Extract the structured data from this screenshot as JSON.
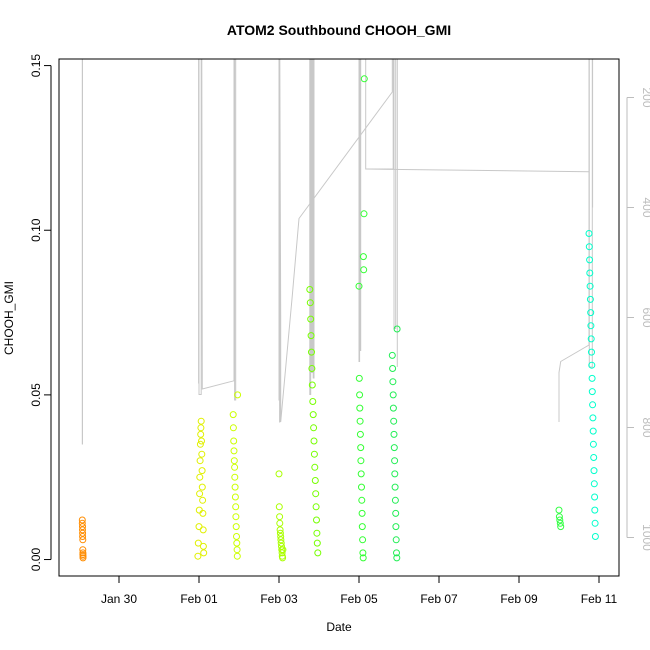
{
  "chart_data": {
    "type": "scatter",
    "title": "ATOM2 Southbound CHOOH_GMI",
    "xlabel": "Date",
    "ylabel": "CHOOH_GMI",
    "x_tick_labels": [
      "Jan 30",
      "Feb 01",
      "Feb 03",
      "Feb 05",
      "Feb 07",
      "Feb 09",
      "Feb 11"
    ],
    "x_ticks": [
      "2017-01-30",
      "2017-02-01",
      "2017-02-03",
      "2017-02-05",
      "2017-02-07",
      "2017-02-09",
      "2017-02-11"
    ],
    "xlim": [
      "2017-01-28T12:00",
      "2017-02-11T12:00"
    ],
    "y_tick_labels": [
      "0.00",
      "0.05",
      "0.10",
      "0.15"
    ],
    "ylim": [
      -0.005,
      0.152
    ],
    "right_axis": {
      "label": "",
      "reversed": true,
      "tick_labels": [
        "200",
        "400",
        "600",
        "800",
        "1000"
      ],
      "ylim": [
        1070,
        130
      ],
      "color": "#bdbdbd"
    },
    "grid": false,
    "legend": "none",
    "series": [
      {
        "x": [
          "2017-01-29T02:00",
          "2017-01-29T02:00",
          "2017-01-29T02:05",
          "2017-01-29T02:05",
          "2017-01-29T02:10",
          "2017-01-29T02:10",
          "2017-01-29T02:15",
          "2017-01-29T02:15",
          "2017-01-29T02:20",
          "2017-01-29T02:20",
          "2017-01-29T02:25",
          "2017-01-29T02:25"
        ],
        "y": [
          0.012,
          0.011,
          0.01,
          0.009,
          0.008,
          0.007,
          0.006,
          0.003,
          0.002,
          0.0015,
          0.001,
          0.0005
        ],
        "color": "#ff8c00"
      },
      {
        "x": [
          "2017-01-31T23:20",
          "2017-01-31T23:35",
          "2017-02-01T00:00",
          "2017-02-01T00:10",
          "2017-02-01T00:20",
          "2017-02-01T00:30",
          "2017-02-01T00:40",
          "2017-02-01T00:50",
          "2017-02-01T01:00",
          "2017-02-01T01:10",
          "2017-02-01T01:20",
          "2017-02-01T01:30",
          "2017-02-01T01:40",
          "2017-02-01T01:50",
          "2017-02-01T02:00",
          "2017-02-01T02:10",
          "2017-02-01T02:20",
          "2017-02-01T02:30",
          "2017-02-01T02:40",
          "2017-02-01T02:50"
        ],
        "y": [
          0.001,
          0.005,
          0.01,
          0.015,
          0.02,
          0.025,
          0.03,
          0.035,
          0.038,
          0.04,
          0.042,
          0.036,
          0.032,
          0.027,
          0.022,
          0.018,
          0.014,
          0.009,
          0.004,
          0.002
        ],
        "color": "#e0f000"
      },
      {
        "x": [
          "2017-02-01T20:30",
          "2017-02-01T20:40",
          "2017-02-01T20:50",
          "2017-02-01T21:00",
          "2017-02-01T21:10",
          "2017-02-01T21:20",
          "2017-02-01T21:30",
          "2017-02-01T21:40",
          "2017-02-01T21:50",
          "2017-02-01T22:00",
          "2017-02-01T22:10",
          "2017-02-01T22:20",
          "2017-02-01T22:30",
          "2017-02-01T22:40",
          "2017-02-01T22:50",
          "2017-02-01T23:00",
          "2017-02-01T23:10"
        ],
        "y": [
          0.044,
          0.04,
          0.036,
          0.033,
          0.03,
          0.028,
          0.025,
          0.022,
          0.019,
          0.016,
          0.013,
          0.01,
          0.007,
          0.005,
          0.003,
          0.001,
          0.05
        ],
        "color": "#ccff00"
      },
      {
        "x": [
          "2017-02-03T00:00",
          "2017-02-03T00:10",
          "2017-02-03T00:20",
          "2017-02-03T00:30",
          "2017-02-03T00:40",
          "2017-02-03T00:50",
          "2017-02-03T01:00",
          "2017-02-03T01:10",
          "2017-02-03T01:20",
          "2017-02-03T01:30",
          "2017-02-03T01:40",
          "2017-02-03T01:50",
          "2017-02-03T02:00",
          "2017-02-03T02:10",
          "2017-02-03T02:20"
        ],
        "y": [
          0.026,
          0.016,
          0.013,
          0.011,
          0.009,
          0.008,
          0.007,
          0.006,
          0.005,
          0.004,
          0.003,
          0.002,
          0.001,
          0.0005,
          0.003
        ],
        "color": "#aaff00"
      },
      {
        "x": [
          "2017-02-03T18:30",
          "2017-02-03T18:45",
          "2017-02-03T19:00",
          "2017-02-03T19:15",
          "2017-02-03T19:30",
          "2017-02-03T19:45",
          "2017-02-03T20:00",
          "2017-02-03T20:15",
          "2017-02-03T20:30",
          "2017-02-03T20:45",
          "2017-02-03T21:00",
          "2017-02-03T21:15",
          "2017-02-03T21:30",
          "2017-02-03T21:45",
          "2017-02-03T22:00",
          "2017-02-03T22:15",
          "2017-02-03T22:30",
          "2017-02-03T22:45",
          "2017-02-03T23:00",
          "2017-02-03T23:15"
        ],
        "y": [
          0.082,
          0.078,
          0.073,
          0.068,
          0.063,
          0.058,
          0.053,
          0.048,
          0.044,
          0.04,
          0.036,
          0.032,
          0.028,
          0.024,
          0.02,
          0.016,
          0.012,
          0.008,
          0.005,
          0.002
        ],
        "color": "#77ff00"
      },
      {
        "x": [
          "2017-02-05T00:00",
          "2017-02-05T00:10",
          "2017-02-05T00:20",
          "2017-02-05T00:30",
          "2017-02-05T00:40",
          "2017-02-05T00:50",
          "2017-02-05T01:00",
          "2017-02-05T01:10",
          "2017-02-05T01:20",
          "2017-02-05T01:30",
          "2017-02-05T01:40",
          "2017-02-05T01:50",
          "2017-02-05T02:00",
          "2017-02-05T02:10",
          "2017-02-05T02:20",
          "2017-02-05T02:30",
          "2017-02-05T02:40",
          "2017-02-05T02:50",
          "2017-02-05T03:00",
          "2017-02-05T03:10"
        ],
        "y": [
          0.083,
          0.055,
          0.05,
          0.046,
          0.042,
          0.038,
          0.034,
          0.03,
          0.026,
          0.022,
          0.018,
          0.014,
          0.01,
          0.006,
          0.002,
          0.0005,
          0.092,
          0.088,
          0.105,
          0.146
        ],
        "color": "#33ff33"
      },
      {
        "x": [
          "2017-02-05T20:00",
          "2017-02-05T20:10",
          "2017-02-05T20:20",
          "2017-02-05T20:30",
          "2017-02-05T20:40",
          "2017-02-05T20:50",
          "2017-02-05T21:00",
          "2017-02-05T21:10",
          "2017-02-05T21:20",
          "2017-02-05T21:30",
          "2017-02-05T21:40",
          "2017-02-05T21:50",
          "2017-02-05T22:00",
          "2017-02-05T22:10",
          "2017-02-05T22:20",
          "2017-02-05T22:30",
          "2017-02-05T22:40",
          "2017-02-05T22:50"
        ],
        "y": [
          0.062,
          0.058,
          0.054,
          0.05,
          0.046,
          0.042,
          0.038,
          0.034,
          0.03,
          0.026,
          0.022,
          0.018,
          0.014,
          0.01,
          0.006,
          0.002,
          0.0005,
          0.07
        ],
        "color": "#22ee55"
      },
      {
        "x": [
          "2017-02-10T00:00",
          "2017-02-10T00:15",
          "2017-02-10T00:30",
          "2017-02-10T00:45",
          "2017-02-10T01:00"
        ],
        "y": [
          0.015,
          0.013,
          0.012,
          0.011,
          0.01
        ],
        "color": "#33ff44"
      },
      {
        "x": [
          "2017-02-10T18:00",
          "2017-02-10T18:10",
          "2017-02-10T18:20",
          "2017-02-10T18:30",
          "2017-02-10T18:40",
          "2017-02-10T18:50",
          "2017-02-10T19:00",
          "2017-02-10T19:10",
          "2017-02-10T19:20",
          "2017-02-10T19:30",
          "2017-02-10T19:40",
          "2017-02-10T19:50",
          "2017-02-10T20:00",
          "2017-02-10T20:10",
          "2017-02-10T20:20",
          "2017-02-10T20:30",
          "2017-02-10T20:40",
          "2017-02-10T20:50",
          "2017-02-10T21:00",
          "2017-02-10T21:10",
          "2017-02-10T21:20",
          "2017-02-10T21:30",
          "2017-02-10T21:40",
          "2017-02-10T21:50"
        ],
        "y": [
          0.099,
          0.095,
          0.091,
          0.087,
          0.083,
          0.079,
          0.075,
          0.071,
          0.067,
          0.063,
          0.059,
          0.055,
          0.051,
          0.047,
          0.043,
          0.039,
          0.035,
          0.031,
          0.027,
          0.023,
          0.019,
          0.015,
          0.011,
          0.007
        ],
        "color": "#00ffcc"
      }
    ],
    "right_axis_series": [
      {
        "x": [
          "2017-01-29T02:00",
          "2017-01-29T02:00",
          "2017-01-29T02:05",
          "2017-01-29T02:05"
        ],
        "y": [
          130,
          830,
          830,
          130
        ]
      },
      {
        "x": [
          "2017-01-31T23:45",
          "2017-01-31T23:45",
          "2017-02-01T00:00",
          "2017-02-01T00:00",
          "2017-02-01T01:20",
          "2017-02-01T01:20",
          "2017-02-01T01:30",
          "2017-02-01T01:30",
          "2017-02-01T01:40",
          "2017-02-01T01:40",
          "2017-02-01T02:00",
          "2017-02-01T21:00",
          "2017-02-01T21:00",
          "2017-02-01T21:20",
          "2017-02-01T21:20",
          "2017-02-01T22:00",
          "2017-02-01T22:00"
        ],
        "y": [
          720,
          130,
          130,
          740,
          740,
          130,
          130,
          540,
          540,
          130,
          730,
          715,
          130,
          130,
          750,
          750,
          130
        ]
      },
      {
        "x": [
          "2017-02-03T00:00",
          "2017-02-03T00:00",
          "2017-02-03T00:10",
          "2017-02-03T00:10",
          "2017-02-03T00:20",
          "2017-02-03T00:20",
          "2017-02-03T00:30",
          "2017-02-03T00:30",
          "2017-02-03T01:00",
          "2017-02-03T01:00",
          "2017-02-03T08:00",
          "2017-02-03T12:00",
          "2017-02-05T20:00",
          "2017-02-05T20:00"
        ],
        "y": [
          130,
          750,
          750,
          130,
          130,
          790,
          790,
          130,
          600,
          790,
          560,
          420,
          190,
          130
        ]
      },
      {
        "x": [
          "2017-02-03T18:30",
          "2017-02-03T18:30",
          "2017-02-03T19:00",
          "2017-02-03T19:00",
          "2017-02-03T19:30",
          "2017-02-03T19:30",
          "2017-02-03T20:00",
          "2017-02-03T20:00",
          "2017-02-03T20:30",
          "2017-02-03T20:30",
          "2017-02-03T21:00",
          "2017-02-03T21:00"
        ],
        "y": [
          130,
          740,
          740,
          130,
          130,
          700,
          700,
          130,
          130,
          710,
          710,
          130
        ]
      },
      {
        "x": [
          "2017-02-05T00:00",
          "2017-02-05T00:00",
          "2017-02-05T00:20",
          "2017-02-05T00:20",
          "2017-02-05T00:40",
          "2017-02-05T00:40",
          "2017-02-05T01:00",
          "2017-02-05T01:00",
          "2017-02-05T04:00",
          "2017-02-05T04:00",
          "2017-02-05T12:00",
          "2017-02-05T20:30",
          "2017-02-05T20:30",
          "2017-02-05T21:00",
          "2017-02-05T21:00",
          "2017-02-05T22:00",
          "2017-02-05T22:00",
          "2017-02-05T23:00",
          "2017-02-05T23:00"
        ],
        "y": [
          130,
          680,
          680,
          130,
          130,
          660,
          660,
          130,
          130,
          330,
          330,
          330,
          130,
          130,
          620,
          620,
          130,
          130,
          690
        ]
      },
      {
        "x": [
          "2017-02-10T00:00",
          "2017-02-10T00:00",
          "2017-02-10T01:00",
          "2017-02-10T18:00",
          "2017-02-10T18:00",
          "2017-02-10T18:10",
          "2017-02-10T18:10",
          "2017-02-10T20:00",
          "2017-02-10T20:00",
          "2017-02-10T20:10",
          "2017-02-10T20:10"
        ],
        "y": [
          790,
          700,
          680,
          650,
          130,
          130,
          690,
          690,
          130,
          130,
          400
        ]
      },
      {
        "x": [
          "2017-02-05T04:00",
          "2017-02-10T18:00"
        ],
        "y": [
          330,
          335
        ]
      }
    ]
  }
}
